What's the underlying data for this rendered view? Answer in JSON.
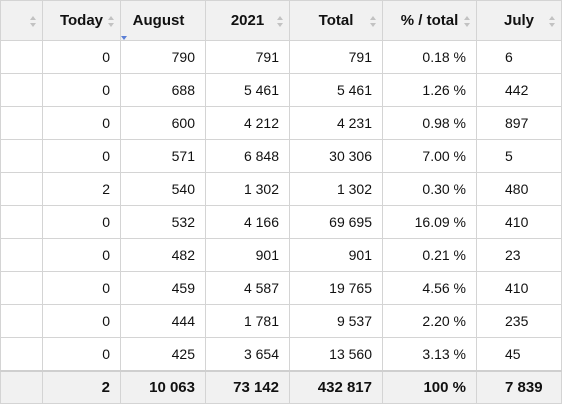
{
  "table": {
    "columns": [
      "Today",
      "August",
      "2021",
      "Total",
      "% / total",
      "July"
    ],
    "rows": [
      [
        "0",
        "790",
        "791",
        "791",
        "0.18 %",
        "6"
      ],
      [
        "0",
        "688",
        "5 461",
        "5 461",
        "1.26 %",
        "442"
      ],
      [
        "0",
        "600",
        "4 212",
        "4 231",
        "0.98 %",
        "897"
      ],
      [
        "0",
        "571",
        "6 848",
        "30 306",
        "7.00 %",
        "5"
      ],
      [
        "2",
        "540",
        "1 302",
        "1 302",
        "0.30 %",
        "480"
      ],
      [
        "0",
        "532",
        "4 166",
        "69 695",
        "16.09 %",
        "410"
      ],
      [
        "0",
        "482",
        "901",
        "901",
        "0.21 %",
        "23"
      ],
      [
        "0",
        "459",
        "4 587",
        "19 765",
        "4.56 %",
        "410"
      ],
      [
        "0",
        "444",
        "1 781",
        "9 537",
        "2.20 %",
        "235"
      ],
      [
        "0",
        "425",
        "3 654",
        "13 560",
        "3.13 %",
        "45"
      ]
    ],
    "totals": [
      "2",
      "10 063",
      "73 142",
      "432 817",
      "100 %",
      "7 839"
    ]
  }
}
